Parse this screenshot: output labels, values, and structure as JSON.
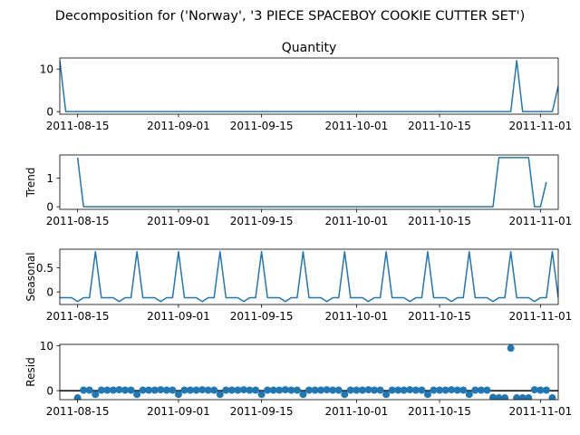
{
  "figure": {
    "suptitle": "Decomposition for ('Norway', '3 PIECE SPACEBOY COOKIE CUTTER SET')"
  },
  "style": {
    "line_color": "#1f77b4",
    "marker_color": "#1f77b4",
    "axis_color": "#000000",
    "zero_line_color": "#000000"
  },
  "chart_data": [
    {
      "type": "line",
      "title": "Quantity",
      "ylabel": "",
      "xlim": [
        "2011-08-12",
        "2011-11-04"
      ],
      "ylim": [
        -0.6,
        12.6
      ],
      "yticks": [
        0,
        10
      ],
      "xticks": [
        "2011-08-15",
        "2011-09-01",
        "2011-09-15",
        "2011-10-01",
        "2011-10-15",
        "2011-11-01"
      ],
      "x": [
        "2011-08-12",
        "2011-08-13",
        "2011-08-28",
        "2011-10-27",
        "2011-10-28",
        "2011-10-29",
        "2011-11-03",
        "2011-11-04"
      ],
      "values": [
        12,
        0,
        0,
        0,
        12,
        0,
        0,
        6
      ]
    },
    {
      "type": "line",
      "title": "",
      "ylabel": "Trend",
      "xlim": [
        "2011-08-12",
        "2011-11-04"
      ],
      "ylim": [
        -0.09,
        1.8
      ],
      "yticks": [
        0,
        1
      ],
      "xticks": [
        "2011-08-15",
        "2011-09-01",
        "2011-09-15",
        "2011-10-01",
        "2011-10-15",
        "2011-11-01"
      ],
      "x": [
        "2011-08-15",
        "2011-08-16",
        "2011-10-24",
        "2011-10-25",
        "2011-10-30",
        "2011-10-31",
        "2011-11-01",
        "2011-11-02"
      ],
      "values": [
        1.71,
        0,
        0,
        1.71,
        1.71,
        0,
        0,
        0.86
      ]
    },
    {
      "type": "line",
      "title": "",
      "ylabel": "Seasonal",
      "xlim": [
        "2011-08-12",
        "2011-11-04"
      ],
      "ylim": [
        -0.26,
        0.88
      ],
      "yticks": [
        0,
        0.5
      ],
      "xticks": [
        "2011-08-15",
        "2011-09-01",
        "2011-09-15",
        "2011-10-01",
        "2011-10-15",
        "2011-11-01"
      ],
      "period_start": "2011-08-12",
      "period_values": [
        -0.12,
        -0.12,
        -0.12,
        -0.2,
        -0.12,
        -0.12,
        0.83
      ],
      "end": "2011-11-04"
    },
    {
      "type": "scatter",
      "title": "",
      "ylabel": "Resid",
      "xlim": [
        "2011-08-12",
        "2011-11-04"
      ],
      "ylim": [
        -2.0,
        10.3
      ],
      "yticks": [
        0,
        10
      ],
      "xticks": [
        "2011-08-15",
        "2011-09-01",
        "2011-09-15",
        "2011-10-01",
        "2011-10-15",
        "2011-11-01"
      ],
      "x": [
        "2011-08-15",
        "2011-08-16",
        "2011-08-17",
        "2011-08-18",
        "2011-08-19",
        "2011-08-20",
        "2011-08-21",
        "2011-08-22",
        "2011-08-23",
        "2011-08-24",
        "2011-08-25",
        "2011-08-26",
        "2011-08-27",
        "2011-08-28",
        "2011-08-29",
        "2011-08-30",
        "2011-08-31",
        "2011-09-01",
        "2011-09-02",
        "2011-09-03",
        "2011-09-04",
        "2011-09-05",
        "2011-09-06",
        "2011-09-07",
        "2011-09-08",
        "2011-09-09",
        "2011-09-10",
        "2011-09-11",
        "2011-09-12",
        "2011-09-13",
        "2011-09-14",
        "2011-09-15",
        "2011-09-16",
        "2011-09-17",
        "2011-09-18",
        "2011-09-19",
        "2011-09-20",
        "2011-09-21",
        "2011-09-22",
        "2011-09-23",
        "2011-09-24",
        "2011-09-25",
        "2011-09-26",
        "2011-09-27",
        "2011-09-28",
        "2011-09-29",
        "2011-09-30",
        "2011-10-01",
        "2011-10-02",
        "2011-10-03",
        "2011-10-04",
        "2011-10-05",
        "2011-10-06",
        "2011-10-07",
        "2011-10-08",
        "2011-10-09",
        "2011-10-10",
        "2011-10-11",
        "2011-10-12",
        "2011-10-13",
        "2011-10-14",
        "2011-10-15",
        "2011-10-16",
        "2011-10-17",
        "2011-10-18",
        "2011-10-19",
        "2011-10-20",
        "2011-10-21",
        "2011-10-22",
        "2011-10-23",
        "2011-10-24",
        "2011-10-25",
        "2011-10-26",
        "2011-10-27",
        "2011-10-28",
        "2011-10-29",
        "2011-10-30",
        "2011-10-31",
        "2011-11-01",
        "2011-11-02",
        "2011-11-03"
      ],
      "values": [
        -1.6,
        0.12,
        0.12,
        -0.83,
        0.12,
        0.12,
        0.12,
        0.2,
        0.12,
        0.12,
        -0.83,
        0.12,
        0.12,
        0.12,
        0.2,
        0.12,
        0.12,
        -0.83,
        0.12,
        0.12,
        0.12,
        0.2,
        0.12,
        0.12,
        -0.83,
        0.12,
        0.12,
        0.12,
        0.2,
        0.12,
        0.12,
        -0.83,
        0.12,
        0.12,
        0.12,
        0.2,
        0.12,
        0.12,
        -0.83,
        0.12,
        0.12,
        0.12,
        0.2,
        0.12,
        0.12,
        -0.83,
        0.12,
        0.12,
        0.12,
        0.2,
        0.12,
        0.12,
        -0.83,
        0.12,
        0.12,
        0.12,
        0.2,
        0.12,
        0.12,
        -0.83,
        0.12,
        0.12,
        0.12,
        0.2,
        0.12,
        0.12,
        -0.83,
        0.12,
        0.12,
        0.12,
        -1.5,
        -1.6,
        -1.6,
        9.46,
        -1.6,
        -1.6,
        -1.6,
        0.2,
        0.12,
        0.12,
        -1.6
      ],
      "zero_line": true
    }
  ]
}
